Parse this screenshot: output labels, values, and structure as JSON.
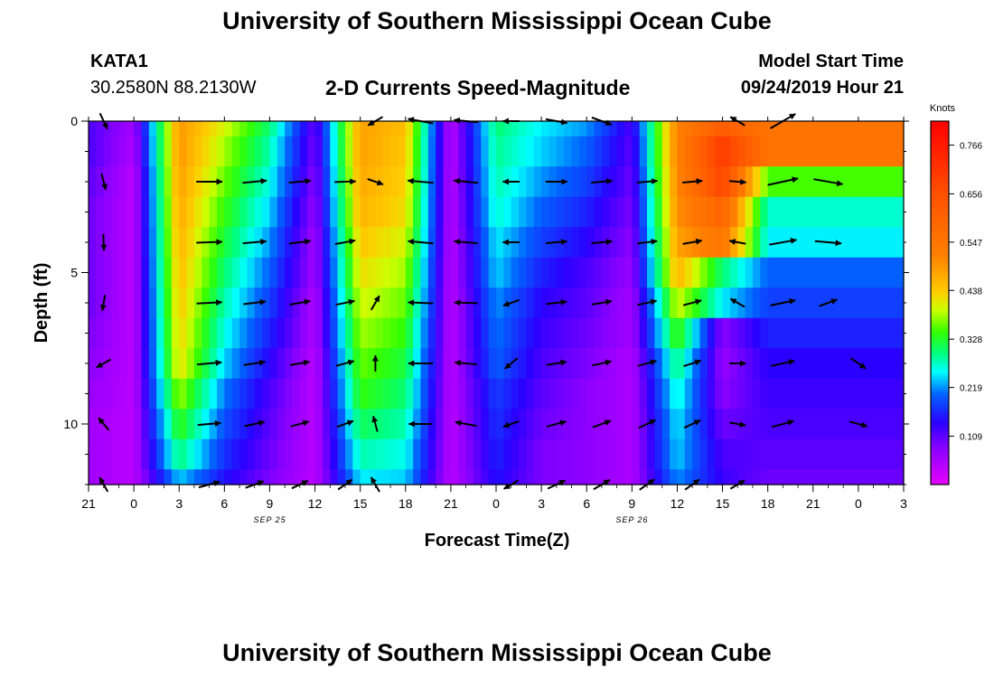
{
  "header": {
    "title": "University of Southern Mississippi Ocean Cube",
    "footer_title": "University of Southern Mississippi Ocean Cube",
    "station_id": "KATA1",
    "coordinates": "30.2580N 88.2130W",
    "subtitle": "2-D Currents Speed-Magnitude",
    "model_start_label": "Model Start Time",
    "model_start_value": "09/24/2019 Hour 21"
  },
  "chart_data": {
    "type": "heatmap",
    "title": "2-D Currents Speed-Magnitude",
    "xlabel": "Forecast Time(Z)",
    "ylabel": "Depth (ft)",
    "x_hours_from_start": [
      0,
      3,
      6,
      9,
      12,
      15,
      18,
      21,
      24,
      27,
      30,
      33,
      36,
      39,
      42,
      45,
      48,
      51,
      54
    ],
    "x_tick_labels": [
      "21",
      "0",
      "3",
      "6",
      "9",
      "12",
      "15",
      "18",
      "21",
      "0",
      "3",
      "6",
      "9",
      "12",
      "15",
      "18",
      "21",
      "0",
      "3"
    ],
    "date_labels": [
      {
        "text": "SEP 25",
        "hour": 15
      },
      {
        "text": "SEP 26",
        "hour": 39
      }
    ],
    "xlim": [
      0,
      54
    ],
    "ylim": [
      0,
      12
    ],
    "y_major_ticks": [
      0,
      5,
      10
    ],
    "y_tick_labels": [
      "0",
      "5",
      "10"
    ],
    "colorbar": {
      "title": "Knots",
      "min": 0,
      "max": 0.82,
      "tick_values": [
        0.109,
        0.219,
        0.328,
        0.438,
        0.547,
        0.656,
        0.766
      ],
      "tick_labels": [
        "0.109",
        "0.219",
        "0.328",
        "0.438",
        "0.547",
        "0.656",
        "0.766"
      ]
    },
    "speed_depths_ft": [
      0,
      1,
      2,
      3,
      4,
      5,
      6,
      7,
      8,
      9,
      10,
      11,
      12
    ],
    "speed_profile_by_hour": [
      {
        "hour": 0,
        "values": [
          0.12,
          0.12,
          0.11,
          0.1,
          0.1,
          0.1,
          0.1,
          0.09,
          0.08,
          0.07,
          0.06,
          0.06,
          0.06
        ]
      },
      {
        "hour": 3,
        "values": [
          0.06,
          0.05,
          0.04,
          0.04,
          0.04,
          0.04,
          0.04,
          0.04,
          0.04,
          0.04,
          0.04,
          0.04,
          0.04
        ]
      },
      {
        "hour": 6,
        "values": [
          0.49,
          0.49,
          0.48,
          0.47,
          0.46,
          0.45,
          0.44,
          0.43,
          0.42,
          0.38,
          0.34,
          0.3,
          0.24
        ]
      },
      {
        "hour": 9,
        "values": [
          0.4,
          0.38,
          0.36,
          0.34,
          0.32,
          0.3,
          0.28,
          0.26,
          0.24,
          0.21,
          0.19,
          0.17,
          0.15
        ]
      },
      {
        "hour": 12,
        "values": [
          0.3,
          0.28,
          0.26,
          0.24,
          0.22,
          0.2,
          0.18,
          0.16,
          0.14,
          0.12,
          0.11,
          0.1,
          0.09
        ]
      },
      {
        "hour": 15,
        "values": [
          0.1,
          0.09,
          0.08,
          0.07,
          0.06,
          0.06,
          0.05,
          0.05,
          0.04,
          0.04,
          0.04,
          0.04,
          0.04
        ]
      },
      {
        "hour": 18,
        "values": [
          0.48,
          0.48,
          0.47,
          0.46,
          0.44,
          0.42,
          0.4,
          0.38,
          0.36,
          0.34,
          0.31,
          0.28,
          0.25
        ]
      },
      {
        "hour": 21,
        "values": [
          0.45,
          0.44,
          0.43,
          0.42,
          0.4,
          0.38,
          0.36,
          0.34,
          0.32,
          0.3,
          0.28,
          0.26,
          0.24
        ]
      },
      {
        "hour": 24,
        "values": [
          0.04,
          0.04,
          0.04,
          0.04,
          0.04,
          0.04,
          0.04,
          0.04,
          0.04,
          0.04,
          0.04,
          0.04,
          0.04
        ]
      },
      {
        "hour": 27,
        "values": [
          0.3,
          0.29,
          0.28,
          0.27,
          0.25,
          0.24,
          0.22,
          0.21,
          0.2,
          0.18,
          0.17,
          0.16,
          0.15
        ]
      },
      {
        "hour": 30,
        "values": [
          0.25,
          0.24,
          0.22,
          0.2,
          0.18,
          0.16,
          0.14,
          0.13,
          0.12,
          0.11,
          0.1,
          0.09,
          0.09
        ]
      },
      {
        "hour": 33,
        "values": [
          0.22,
          0.2,
          0.18,
          0.16,
          0.14,
          0.12,
          0.11,
          0.1,
          0.09,
          0.08,
          0.08,
          0.08,
          0.08
        ]
      },
      {
        "hour": 36,
        "values": [
          0.12,
          0.11,
          0.1,
          0.09,
          0.08,
          0.07,
          0.06,
          0.06,
          0.05,
          0.05,
          0.05,
          0.05,
          0.05
        ]
      },
      {
        "hour": 39,
        "values": [
          0.52,
          0.52,
          0.51,
          0.5,
          0.48,
          0.46,
          0.4,
          0.35,
          0.3,
          0.27,
          0.25,
          0.24,
          0.22
        ]
      },
      {
        "hour": 42,
        "values": [
          0.62,
          0.7,
          0.68,
          0.6,
          0.55,
          0.3,
          0.25,
          0.08,
          0.07,
          0.08,
          0.1,
          0.12,
          0.13
        ]
      },
      {
        "hour": 45,
        "values": [
          0.55,
          0.55,
          0.35,
          0.27,
          0.25,
          0.2,
          0.18,
          0.16,
          0.14,
          0.13,
          0.12,
          0.11,
          0.1
        ]
      }
    ],
    "current_vectors": [
      {
        "hour": 1,
        "depth_ft": 0,
        "direction_deg": 155,
        "magnitude_knots": 0.12
      },
      {
        "hour": 1,
        "depth_ft": 2,
        "direction_deg": 165,
        "magnitude_knots": 0.1
      },
      {
        "hour": 1,
        "depth_ft": 4,
        "direction_deg": 178,
        "magnitude_knots": 0.09
      },
      {
        "hour": 1,
        "depth_ft": 6,
        "direction_deg": 190,
        "magnitude_knots": 0.07
      },
      {
        "hour": 1,
        "depth_ft": 8,
        "direction_deg": 240,
        "magnitude_knots": 0.08
      },
      {
        "hour": 1,
        "depth_ft": 10,
        "direction_deg": 320,
        "magnitude_knots": 0.07
      },
      {
        "hour": 1,
        "depth_ft": 12,
        "direction_deg": 330,
        "magnitude_knots": 0.08
      },
      {
        "hour": 8,
        "depth_ft": 2,
        "direction_deg": 90,
        "magnitude_knots": 0.48
      },
      {
        "hour": 11,
        "depth_ft": 2,
        "direction_deg": 85,
        "magnitude_knots": 0.4
      },
      {
        "hour": 14,
        "depth_ft": 2,
        "direction_deg": 85,
        "magnitude_knots": 0.32
      },
      {
        "hour": 17,
        "depth_ft": 2,
        "direction_deg": 88,
        "magnitude_knots": 0.28
      },
      {
        "hour": 8,
        "depth_ft": 4,
        "direction_deg": 88,
        "magnitude_knots": 0.47
      },
      {
        "hour": 11,
        "depth_ft": 4,
        "direction_deg": 85,
        "magnitude_knots": 0.38
      },
      {
        "hour": 14,
        "depth_ft": 4,
        "direction_deg": 83,
        "magnitude_knots": 0.3
      },
      {
        "hour": 17,
        "depth_ft": 4,
        "direction_deg": 80,
        "magnitude_knots": 0.25
      },
      {
        "hour": 8,
        "depth_ft": 6,
        "direction_deg": 87,
        "magnitude_knots": 0.45
      },
      {
        "hour": 11,
        "depth_ft": 6,
        "direction_deg": 83,
        "magnitude_knots": 0.34
      },
      {
        "hour": 14,
        "depth_ft": 6,
        "direction_deg": 80,
        "magnitude_knots": 0.26
      },
      {
        "hour": 17,
        "depth_ft": 6,
        "direction_deg": 78,
        "magnitude_knots": 0.2
      },
      {
        "hour": 8,
        "depth_ft": 8,
        "direction_deg": 85,
        "magnitude_knots": 0.42
      },
      {
        "hour": 11,
        "depth_ft": 8,
        "direction_deg": 82,
        "magnitude_knots": 0.3
      },
      {
        "hour": 14,
        "depth_ft": 8,
        "direction_deg": 80,
        "magnitude_knots": 0.22
      },
      {
        "hour": 17,
        "depth_ft": 8,
        "direction_deg": 75,
        "magnitude_knots": 0.16
      },
      {
        "hour": 8,
        "depth_ft": 10,
        "direction_deg": 85,
        "magnitude_knots": 0.36
      },
      {
        "hour": 11,
        "depth_ft": 10,
        "direction_deg": 78,
        "magnitude_knots": 0.25
      },
      {
        "hour": 14,
        "depth_ft": 10,
        "direction_deg": 75,
        "magnitude_knots": 0.18
      },
      {
        "hour": 17,
        "depth_ft": 10,
        "direction_deg": 70,
        "magnitude_knots": 0.12
      },
      {
        "hour": 8,
        "depth_ft": 12,
        "direction_deg": 75,
        "magnitude_knots": 0.3
      },
      {
        "hour": 11,
        "depth_ft": 12,
        "direction_deg": 70,
        "magnitude_knots": 0.2
      },
      {
        "hour": 14,
        "depth_ft": 12,
        "direction_deg": 65,
        "magnitude_knots": 0.14
      },
      {
        "hour": 17,
        "depth_ft": 12,
        "direction_deg": 55,
        "magnitude_knots": 0.12
      },
      {
        "hour": 19,
        "depth_ft": 0,
        "direction_deg": 240,
        "magnitude_knots": 0.1
      },
      {
        "hour": 19,
        "depth_ft": 2,
        "direction_deg": 110,
        "magnitude_knots": 0.09
      },
      {
        "hour": 19,
        "depth_ft": 6,
        "direction_deg": 30,
        "magnitude_knots": 0.08
      },
      {
        "hour": 19,
        "depth_ft": 8,
        "direction_deg": 0,
        "magnitude_knots": 0.07
      },
      {
        "hour": 19,
        "depth_ft": 10,
        "direction_deg": 345,
        "magnitude_knots": 0.07
      },
      {
        "hour": 19,
        "depth_ft": 12,
        "direction_deg": 330,
        "magnitude_knots": 0.1
      },
      {
        "hour": 22,
        "depth_ft": 0,
        "direction_deg": 280,
        "magnitude_knots": 0.46
      },
      {
        "hour": 25,
        "depth_ft": 0,
        "direction_deg": 275,
        "magnitude_knots": 0.4
      },
      {
        "hour": 22,
        "depth_ft": 2,
        "direction_deg": 275,
        "magnitude_knots": 0.47
      },
      {
        "hour": 25,
        "depth_ft": 2,
        "direction_deg": 275,
        "magnitude_knots": 0.4
      },
      {
        "hour": 22,
        "depth_ft": 4,
        "direction_deg": 275,
        "magnitude_knots": 0.45
      },
      {
        "hour": 25,
        "depth_ft": 4,
        "direction_deg": 275,
        "magnitude_knots": 0.38
      },
      {
        "hour": 22,
        "depth_ft": 6,
        "direction_deg": 272,
        "magnitude_knots": 0.44
      },
      {
        "hour": 25,
        "depth_ft": 6,
        "direction_deg": 272,
        "magnitude_knots": 0.36
      },
      {
        "hour": 22,
        "depth_ft": 8,
        "direction_deg": 270,
        "magnitude_knots": 0.42
      },
      {
        "hour": 25,
        "depth_ft": 8,
        "direction_deg": 275,
        "magnitude_knots": 0.32
      },
      {
        "hour": 22,
        "depth_ft": 10,
        "direction_deg": 270,
        "magnitude_knots": 0.38
      },
      {
        "hour": 25,
        "depth_ft": 10,
        "direction_deg": 280,
        "magnitude_knots": 0.3
      },
      {
        "hour": 28,
        "depth_ft": 0,
        "direction_deg": 270,
        "magnitude_knots": 0.1
      },
      {
        "hour": 28,
        "depth_ft": 2,
        "direction_deg": 270,
        "magnitude_knots": 0.1
      },
      {
        "hour": 28,
        "depth_ft": 4,
        "direction_deg": 270,
        "magnitude_knots": 0.1
      },
      {
        "hour": 28,
        "depth_ft": 6,
        "direction_deg": 250,
        "magnitude_knots": 0.1
      },
      {
        "hour": 28,
        "depth_ft": 8,
        "direction_deg": 230,
        "magnitude_knots": 0.09
      },
      {
        "hour": 28,
        "depth_ft": 10,
        "direction_deg": 250,
        "magnitude_knots": 0.09
      },
      {
        "hour": 28,
        "depth_ft": 12,
        "direction_deg": 240,
        "magnitude_knots": 0.1
      },
      {
        "hour": 31,
        "depth_ft": 0,
        "direction_deg": 100,
        "magnitude_knots": 0.3
      },
      {
        "hour": 34,
        "depth_ft": 0,
        "direction_deg": 110,
        "magnitude_knots": 0.28
      },
      {
        "hour": 31,
        "depth_ft": 2,
        "direction_deg": 90,
        "magnitude_knots": 0.3
      },
      {
        "hour": 34,
        "depth_ft": 2,
        "direction_deg": 85,
        "magnitude_knots": 0.28
      },
      {
        "hour": 37,
        "depth_ft": 2,
        "direction_deg": 85,
        "magnitude_knots": 0.26
      },
      {
        "hour": 40,
        "depth_ft": 2,
        "direction_deg": 85,
        "magnitude_knots": 0.22
      },
      {
        "hour": 31,
        "depth_ft": 4,
        "direction_deg": 85,
        "magnitude_knots": 0.28
      },
      {
        "hour": 34,
        "depth_ft": 4,
        "direction_deg": 85,
        "magnitude_knots": 0.26
      },
      {
        "hour": 37,
        "depth_ft": 4,
        "direction_deg": 83,
        "magnitude_knots": 0.24
      },
      {
        "hour": 40,
        "depth_ft": 4,
        "direction_deg": 80,
        "magnitude_knots": 0.2
      },
      {
        "hour": 31,
        "depth_ft": 6,
        "direction_deg": 83,
        "magnitude_knots": 0.26
      },
      {
        "hour": 34,
        "depth_ft": 6,
        "direction_deg": 80,
        "magnitude_knots": 0.24
      },
      {
        "hour": 37,
        "depth_ft": 6,
        "direction_deg": 78,
        "magnitude_knots": 0.22
      },
      {
        "hour": 40,
        "depth_ft": 6,
        "direction_deg": 75,
        "magnitude_knots": 0.18
      },
      {
        "hour": 31,
        "depth_ft": 8,
        "direction_deg": 80,
        "magnitude_knots": 0.24
      },
      {
        "hour": 34,
        "depth_ft": 8,
        "direction_deg": 78,
        "magnitude_knots": 0.22
      },
      {
        "hour": 37,
        "depth_ft": 8,
        "direction_deg": 75,
        "magnitude_knots": 0.2
      },
      {
        "hour": 40,
        "depth_ft": 8,
        "direction_deg": 72,
        "magnitude_knots": 0.16
      },
      {
        "hour": 31,
        "depth_ft": 10,
        "direction_deg": 75,
        "magnitude_knots": 0.22
      },
      {
        "hour": 34,
        "depth_ft": 10,
        "direction_deg": 70,
        "magnitude_knots": 0.2
      },
      {
        "hour": 37,
        "depth_ft": 10,
        "direction_deg": 65,
        "magnitude_knots": 0.18
      },
      {
        "hour": 40,
        "depth_ft": 10,
        "direction_deg": 65,
        "magnitude_knots": 0.15
      },
      {
        "hour": 31,
        "depth_ft": 12,
        "direction_deg": 65,
        "magnitude_knots": 0.2
      },
      {
        "hour": 34,
        "depth_ft": 12,
        "direction_deg": 60,
        "magnitude_knots": 0.18
      },
      {
        "hour": 37,
        "depth_ft": 12,
        "direction_deg": 55,
        "magnitude_knots": 0.16
      },
      {
        "hour": 40,
        "depth_ft": 12,
        "direction_deg": 55,
        "magnitude_knots": 0.14
      },
      {
        "hour": 43,
        "depth_ft": 0,
        "direction_deg": 300,
        "magnitude_knots": 0.1
      },
      {
        "hour": 43,
        "depth_ft": 2,
        "direction_deg": 95,
        "magnitude_knots": 0.1
      },
      {
        "hour": 43,
        "depth_ft": 4,
        "direction_deg": 280,
        "magnitude_knots": 0.09
      },
      {
        "hour": 43,
        "depth_ft": 6,
        "direction_deg": 300,
        "magnitude_knots": 0.08
      },
      {
        "hour": 43,
        "depth_ft": 8,
        "direction_deg": 90,
        "magnitude_knots": 0.08
      },
      {
        "hour": 43,
        "depth_ft": 10,
        "direction_deg": 100,
        "magnitude_knots": 0.08
      },
      {
        "hour": 43,
        "depth_ft": 12,
        "direction_deg": 60,
        "magnitude_knots": 0.09
      },
      {
        "hour": 46,
        "depth_ft": 0,
        "direction_deg": 60,
        "magnitude_knots": 0.6
      },
      {
        "hour": 46,
        "depth_ft": 2,
        "direction_deg": 78,
        "magnitude_knots": 0.68
      },
      {
        "hour": 49,
        "depth_ft": 2,
        "direction_deg": 100,
        "magnitude_knots": 0.62
      },
      {
        "hour": 46,
        "depth_ft": 4,
        "direction_deg": 80,
        "magnitude_knots": 0.55
      },
      {
        "hour": 49,
        "depth_ft": 4,
        "direction_deg": 95,
        "magnitude_knots": 0.5
      },
      {
        "hour": 46,
        "depth_ft": 6,
        "direction_deg": 78,
        "magnitude_knots": 0.45
      },
      {
        "hour": 49,
        "depth_ft": 6,
        "direction_deg": 70,
        "magnitude_knots": 0.2
      },
      {
        "hour": 46,
        "depth_ft": 8,
        "direction_deg": 78,
        "magnitude_knots": 0.4
      },
      {
        "hour": 51,
        "depth_ft": 8,
        "direction_deg": 125,
        "magnitude_knots": 0.15
      },
      {
        "hour": 46,
        "depth_ft": 10,
        "direction_deg": 75,
        "magnitude_knots": 0.35
      },
      {
        "hour": 51,
        "depth_ft": 10,
        "direction_deg": 105,
        "magnitude_knots": 0.18
      }
    ]
  }
}
